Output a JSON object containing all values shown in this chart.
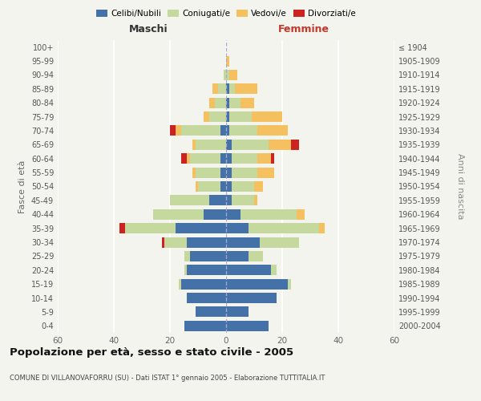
{
  "age_groups": [
    "0-4",
    "5-9",
    "10-14",
    "15-19",
    "20-24",
    "25-29",
    "30-34",
    "35-39",
    "40-44",
    "45-49",
    "50-54",
    "55-59",
    "60-64",
    "65-69",
    "70-74",
    "75-79",
    "80-84",
    "85-89",
    "90-94",
    "95-99",
    "100+"
  ],
  "birth_years": [
    "2000-2004",
    "1995-1999",
    "1990-1994",
    "1985-1989",
    "1980-1984",
    "1975-1979",
    "1970-1974",
    "1965-1969",
    "1960-1964",
    "1955-1959",
    "1950-1954",
    "1945-1949",
    "1940-1944",
    "1935-1939",
    "1930-1934",
    "1925-1929",
    "1920-1924",
    "1915-1919",
    "1910-1914",
    "1905-1909",
    "≤ 1904"
  ],
  "maschi": {
    "celibi": [
      15,
      11,
      14,
      16,
      14,
      13,
      14,
      18,
      8,
      6,
      2,
      2,
      2,
      0,
      2,
      0,
      0,
      0,
      0,
      0,
      0
    ],
    "coniugati": [
      0,
      0,
      0,
      1,
      1,
      2,
      8,
      18,
      18,
      14,
      8,
      9,
      11,
      11,
      14,
      6,
      4,
      3,
      1,
      0,
      0
    ],
    "vedovi": [
      0,
      0,
      0,
      0,
      0,
      0,
      0,
      0,
      0,
      0,
      1,
      1,
      1,
      1,
      2,
      2,
      2,
      2,
      0,
      0,
      0
    ],
    "divorziati": [
      0,
      0,
      0,
      0,
      0,
      0,
      1,
      2,
      0,
      0,
      0,
      0,
      2,
      0,
      2,
      0,
      0,
      0,
      0,
      0,
      0
    ]
  },
  "femmine": {
    "nubili": [
      15,
      8,
      18,
      22,
      16,
      8,
      12,
      8,
      5,
      2,
      2,
      2,
      2,
      2,
      1,
      1,
      1,
      1,
      0,
      0,
      0
    ],
    "coniugate": [
      0,
      0,
      0,
      1,
      2,
      5,
      14,
      25,
      20,
      8,
      8,
      9,
      9,
      13,
      10,
      8,
      4,
      2,
      1,
      0,
      0
    ],
    "vedove": [
      0,
      0,
      0,
      0,
      0,
      0,
      0,
      2,
      3,
      1,
      3,
      6,
      5,
      8,
      11,
      11,
      5,
      8,
      3,
      1,
      0
    ],
    "divorziate": [
      0,
      0,
      0,
      0,
      0,
      0,
      0,
      0,
      0,
      0,
      0,
      0,
      1,
      3,
      0,
      0,
      0,
      0,
      0,
      0,
      0
    ]
  },
  "colors": {
    "celibi": "#4472a8",
    "coniugati": "#c5d89e",
    "vedovi": "#f5c060",
    "divorziati": "#cc2222"
  },
  "xlim": 60,
  "title_main": "Popolazione per età, sesso e stato civile - 2005",
  "title_sub": "COMUNE DI VILLANOVAFORRU (SU) - Dati ISTAT 1° gennaio 2005 - Elaborazione TUTTITALIA.IT",
  "ylabel_left": "Fasce di età",
  "ylabel_right": "Anni di nascita",
  "label_maschi": "Maschi",
  "label_femmine": "Femmine",
  "bg_color": "#f4f4ef",
  "bar_height": 0.75,
  "legend_labels": [
    "Celibi/Nubili",
    "Coniugati/e",
    "Vedovi/e",
    "Divorziati/e"
  ]
}
